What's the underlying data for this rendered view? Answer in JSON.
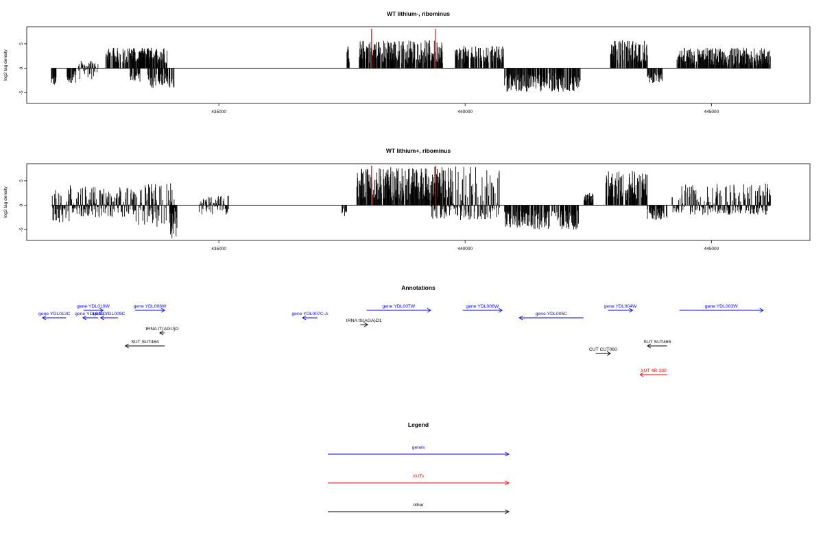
{
  "chart_data": [
    {
      "type": "bar",
      "title": "WT lithium-, ribominus",
      "ylabel": "log2 tag density",
      "xlim": [
        431100,
        447000
      ],
      "ylim": [
        -7.2,
        8.5
      ],
      "x_ticks": [
        435000,
        440000,
        445000
      ],
      "x_tick_labels": [
        "435000",
        "440000",
        "445000"
      ],
      "y_ticks": [
        -5,
        0,
        5
      ],
      "y_tick_labels": [
        "-5",
        "0",
        "5"
      ],
      "x_range": [
        431600,
        446200
      ],
      "bar_color": "#000000",
      "highlight_color": "#ff0000",
      "highlight_lines": [
        438100,
        439400
      ],
      "bar_clusters": [
        {
          "from": 431600,
          "to": 431700,
          "min": -3.6,
          "max": -1.5
        },
        {
          "from": 431900,
          "to": 432100,
          "min": -3,
          "max": -0.5
        },
        {
          "from": 432150,
          "to": 432550,
          "min": -2.5,
          "max": 1.5
        },
        {
          "from": 432700,
          "to": 433650,
          "min": 1.0,
          "max": 4.2
        },
        {
          "from": 433200,
          "to": 433400,
          "min": -3.0,
          "max": -1.0
        },
        {
          "from": 433400,
          "to": 433950,
          "min": 1.0,
          "max": 4.3
        },
        {
          "from": 433550,
          "to": 434100,
          "min": -4.0,
          "max": -1.0
        },
        {
          "from": 437600,
          "to": 437650,
          "min": 1.0,
          "max": 4.6
        },
        {
          "from": 437850,
          "to": 439550,
          "min": 1.0,
          "max": 5.8
        },
        {
          "from": 439800,
          "to": 440800,
          "min": 1.0,
          "max": 4.6
        },
        {
          "from": 440800,
          "to": 442350,
          "min": -4.8,
          "max": -1.0
        },
        {
          "from": 442950,
          "to": 443700,
          "min": 1.0,
          "max": 5.8
        },
        {
          "from": 443700,
          "to": 444000,
          "min": -3.0,
          "max": -1.0
        },
        {
          "from": 444300,
          "to": 446200,
          "min": 0.5,
          "max": 4.2
        }
      ]
    },
    {
      "type": "bar",
      "title": "WT lithium+, ribominus",
      "ylabel": "log2 tag density",
      "xlim": [
        431100,
        447000
      ],
      "ylim": [
        -7.2,
        8.5
      ],
      "x_ticks": [
        435000,
        440000,
        445000
      ],
      "x_tick_labels": [
        "435000",
        "440000",
        "445000"
      ],
      "y_ticks": [
        -5,
        0,
        5
      ],
      "y_tick_labels": [
        "-5",
        "0",
        "5"
      ],
      "x_range": [
        431600,
        446200
      ],
      "bar_color": "#000000",
      "highlight_color": "#ff0000",
      "highlight_lines": [
        438100,
        439400
      ],
      "bar_clusters": [
        {
          "from": 431600,
          "to": 432000,
          "min": -3.8,
          "max": 4.2
        },
        {
          "from": 432000,
          "to": 433300,
          "min": -2.5,
          "max": 3.8
        },
        {
          "from": 433300,
          "to": 434100,
          "min": -4.5,
          "max": 4.5
        },
        {
          "from": 434000,
          "to": 434150,
          "min": -6.8,
          "max": -1.0
        },
        {
          "from": 434600,
          "to": 435200,
          "min": -2.0,
          "max": 2.0
        },
        {
          "from": 437500,
          "to": 437600,
          "min": -2.2,
          "max": -0.5
        },
        {
          "from": 437800,
          "to": 439600,
          "min": 1.0,
          "max": 7.8
        },
        {
          "from": 439300,
          "to": 440700,
          "min": -3.0,
          "max": 8.0
        },
        {
          "from": 440800,
          "to": 442300,
          "min": -5.0,
          "max": -1.0
        },
        {
          "from": 442400,
          "to": 442600,
          "min": 0.5,
          "max": 2.5
        },
        {
          "from": 442850,
          "to": 443700,
          "min": 1.0,
          "max": 7.0
        },
        {
          "from": 443700,
          "to": 444100,
          "min": -3.0,
          "max": -0.5
        },
        {
          "from": 444200,
          "to": 446200,
          "min": -2.0,
          "max": 4.5
        }
      ]
    },
    {
      "type": "annotation-track",
      "title": "Annotations",
      "xlim": [
        431100,
        447000
      ],
      "features": [
        {
          "label": "gene YDL012C",
          "start": 431420,
          "end": 431900,
          "strand": "-",
          "row": 1,
          "category": "gene"
        },
        {
          "label": "gene YDL011C",
          "start": 432240,
          "end": 432550,
          "strand": "-",
          "row": 1,
          "category": "gene"
        },
        {
          "label": "gene YDL010W",
          "start": 432250,
          "end": 432650,
          "strand": "+",
          "row": 0,
          "category": "gene"
        },
        {
          "label": "gene YDL009C",
          "start": 432600,
          "end": 432950,
          "strand": "-",
          "row": 1,
          "category": "gene"
        },
        {
          "label": "gene YDL008W",
          "start": 433300,
          "end": 433900,
          "strand": "+",
          "row": 0,
          "category": "gene"
        },
        {
          "label": "gene YDL007C-A",
          "start": 436700,
          "end": 437000,
          "strand": "-",
          "row": 1,
          "category": "gene"
        },
        {
          "label": "gene YDL007W",
          "start": 438000,
          "end": 439300,
          "strand": "+",
          "row": 0,
          "category": "gene"
        },
        {
          "label": "gene YDL006W",
          "start": 439950,
          "end": 440750,
          "strand": "+",
          "row": 0,
          "category": "gene"
        },
        {
          "label": "gene YDL005C",
          "start": 441100,
          "end": 442400,
          "strand": "-",
          "row": 1,
          "category": "gene"
        },
        {
          "label": "gene YDL004W",
          "start": 442900,
          "end": 443400,
          "strand": "+",
          "row": 0,
          "category": "gene"
        },
        {
          "label": "gene YDL003W",
          "start": 444350,
          "end": 446050,
          "strand": "+",
          "row": 0,
          "category": "gene"
        },
        {
          "label": "tRNA tS(AGA)D1",
          "start": 437870,
          "end": 438020,
          "strand": "+",
          "row": 2,
          "category": "other"
        },
        {
          "label": "tRNA tT(AGU)D",
          "start": 433800,
          "end": 433900,
          "strand": "-",
          "row": 3,
          "category": "other"
        },
        {
          "label": "SUT SUT464",
          "start": 433100,
          "end": 433900,
          "strand": "-",
          "row": 4,
          "category": "other"
        },
        {
          "label": "SUT SUT465",
          "start": 443700,
          "end": 444100,
          "strand": "-",
          "row": 4,
          "category": "other"
        },
        {
          "label": "CUT CUT060",
          "start": 442650,
          "end": 442950,
          "strand": "+",
          "row": 5,
          "category": "other"
        },
        {
          "label": "XUT 4R-190",
          "start": 443550,
          "end": 444100,
          "strand": "-",
          "row": 6,
          "category": "XUTs"
        }
      ]
    },
    {
      "type": "legend",
      "title": "Legend",
      "entries": [
        {
          "label": "genes",
          "color": "#0000ff"
        },
        {
          "label": "XUTs",
          "color": "#ff0000"
        },
        {
          "label": "other",
          "color": "#000000"
        }
      ]
    }
  ]
}
